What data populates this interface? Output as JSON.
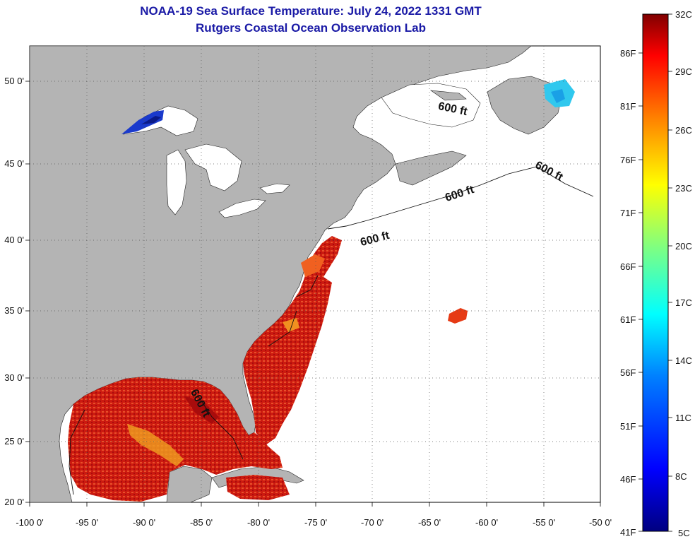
{
  "header": {
    "title": "NOAA-19 Sea Surface Temperature:  July 24, 2022 1331 GMT",
    "subtitle": "Rutgers Coastal Ocean Observation Lab"
  },
  "axes": {
    "lat_labels": [
      "50 0'",
      "45 0'",
      "40 0'",
      "35 0'",
      "30 0'",
      "25 0'",
      "20 0'"
    ],
    "lon_labels": [
      "-100 0'",
      "-95 0'",
      "-90 0'",
      "-85 0'",
      "-80 0'",
      "-75 0'",
      "-70 0'",
      "-65 0'",
      "-60 0'",
      "-55 0'",
      "-50 0'"
    ]
  },
  "contour_labels": [
    "600 ft",
    "600 ft",
    "600 ft",
    "600 ft",
    "600 ft"
  ],
  "colorbar": {
    "celsius": [
      "32C",
      "29C",
      "26C",
      "23C",
      "20C",
      "17C",
      "14C",
      "11C",
      "8C",
      "5C"
    ],
    "fahrenheit": [
      "86F",
      "81F",
      "76F",
      "71F",
      "66F",
      "61F",
      "56F",
      "51F",
      "46F",
      "41F"
    ],
    "colors": [
      "#000080",
      "#0000ff",
      "#0080ff",
      "#00ffff",
      "#80ff80",
      "#ffff00",
      "#ff8000",
      "#ff0000",
      "#800000"
    ]
  },
  "colors": {
    "land": "#b4b4b4",
    "ocean_no_data": "#ffffff",
    "title": "#1a1aa6"
  }
}
